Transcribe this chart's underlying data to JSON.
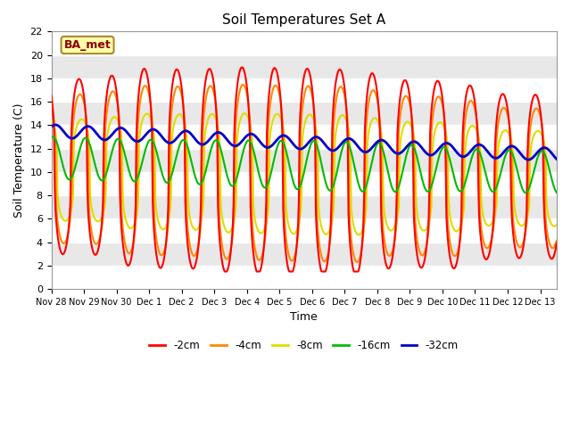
{
  "title": "Soil Temperatures Set A",
  "xlabel": "Time",
  "ylabel": "Soil Temperature (C)",
  "ylim": [
    0,
    22
  ],
  "xlim": [
    0,
    15.5
  ],
  "label_box_text": "BA_met",
  "background_color": "#ffffff",
  "series_colors": {
    "-2cm": "#ff0000",
    "-4cm": "#ff8800",
    "-8cm": "#dddd00",
    "-16cm": "#00bb00",
    "-32cm": "#0000cc"
  },
  "series_lw": {
    "-2cm": 1.5,
    "-4cm": 1.5,
    "-8cm": 1.5,
    "-16cm": 1.5,
    "-32cm": 2.0
  },
  "xtick_labels": [
    "Nov 28",
    "Nov 29",
    "Nov 30",
    "Dec 1",
    "Dec 2",
    "Dec 3",
    "Dec 4",
    "Dec 5",
    "Dec 6",
    "Dec 7",
    "Dec 8",
    "Dec 9",
    "Dec 10",
    "Dec 11",
    "Dec 12",
    "Dec 13"
  ],
  "xtick_positions": [
    0,
    1,
    2,
    3,
    4,
    5,
    6,
    7,
    8,
    9,
    10,
    11,
    12,
    13,
    14,
    15
  ],
  "ytick_positions": [
    0,
    2,
    4,
    6,
    8,
    10,
    12,
    14,
    16,
    18,
    20,
    22
  ],
  "band_colors": [
    "#ffffff",
    "#e8e8e8"
  ]
}
